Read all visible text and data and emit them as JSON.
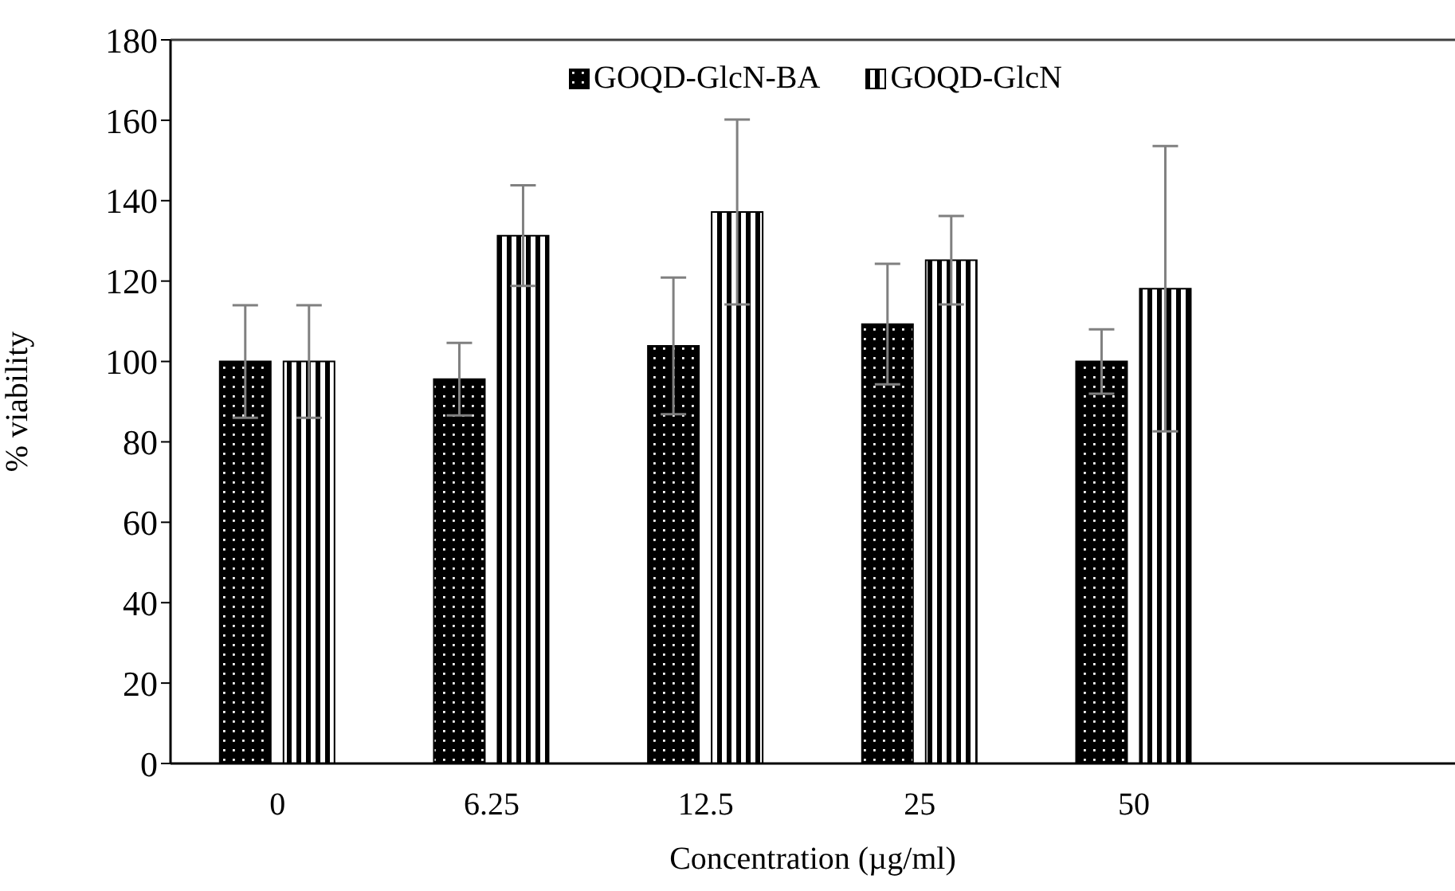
{
  "chart_data": {
    "type": "bar",
    "xlabel": "Concentration (µg/ml)",
    "ylabel": "% viability",
    "categories": [
      "0",
      "6.25",
      "12.5",
      "25",
      "50",
      null
    ],
    "series": [
      {
        "name": "GOQD-GlcN-BA",
        "color": "#000000",
        "values": [
          100,
          95.6,
          103.9,
          109.3,
          100,
          null
        ],
        "errors": [
          14,
          9,
          17,
          15,
          8,
          null
        ]
      },
      {
        "name": "GOQD-GlcN",
        "color": "#000000",
        "values": [
          100,
          131.3,
          137.2,
          125.2,
          118.1,
          null
        ],
        "errors": [
          14,
          12.5,
          23,
          11,
          35.5,
          null
        ]
      }
    ],
    "ylim": [
      0,
      180
    ],
    "yticks": [
      0,
      20,
      40,
      60,
      80,
      100,
      120,
      140,
      160,
      180
    ],
    "legend": "top"
  }
}
